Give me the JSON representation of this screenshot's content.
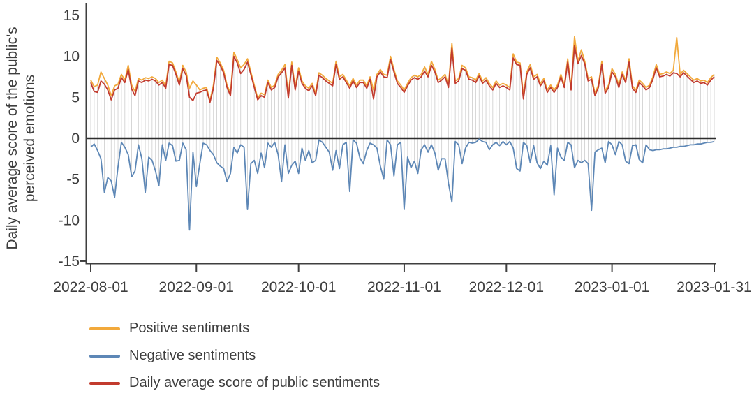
{
  "chart_data": {
    "type": "line",
    "title": "",
    "ylabel": "Daily average score of the public's perceived emotions",
    "ylabel_lines": [
      "Daily average score of the public's",
      "perceived emotions"
    ],
    "xlabel": "",
    "x_unit": "day",
    "n_points": 184,
    "x_range": [
      "2022-08-01",
      "2023-01-31"
    ],
    "x_tick_labels": [
      "2022-08-01",
      "2022-09-01",
      "2022-10-01",
      "2022-11-01",
      "2022-12-01",
      "2023-01-01",
      "2023-01-31"
    ],
    "x_tick_day_index": [
      0,
      31,
      61,
      92,
      122,
      153,
      183
    ],
    "y_ticks": [
      15,
      10,
      5,
      0,
      -5,
      -10,
      -15
    ],
    "ylim": [
      -15,
      15
    ],
    "grid": false,
    "legend_position": "bottom-left",
    "axis_color": "#3f3f3f",
    "stem_color": "#d2d2d2",
    "zero_line_color": "#2d2d2d",
    "series": [
      {
        "name": "Positive sentiments",
        "color": "#F2A93B",
        "values": [
          7.1,
          6.3,
          6.5,
          8.1,
          7.3,
          6.5,
          5.2,
          6.4,
          6.6,
          7.8,
          7.1,
          8.9,
          6.5,
          5.7,
          7.3,
          7.1,
          7.4,
          7.3,
          7.5,
          7.3,
          6.8,
          7.1,
          6.4,
          9.4,
          9.2,
          8.1,
          6.8,
          8.9,
          8.1,
          6.1,
          7.0,
          6.5,
          5.9,
          6.1,
          6.2,
          4.6,
          6.5,
          9.9,
          9.2,
          8.3,
          6.5,
          5.5,
          10.5,
          9.6,
          8.6,
          9.0,
          9.7,
          8.1,
          6.5,
          4.9,
          5.5,
          5.3,
          7.1,
          6.2,
          6.5,
          7.8,
          8.3,
          9.0,
          5.3,
          9.3,
          6.2,
          8.6,
          7.0,
          6.4,
          6.1,
          6.7,
          5.5,
          8.0,
          7.7,
          7.3,
          7.0,
          6.7,
          9.4,
          7.5,
          7.8,
          7.1,
          6.4,
          7.3,
          6.5,
          7.1,
          7.1,
          6.4,
          7.5,
          5.9,
          7.8,
          8.4,
          7.8,
          7.7,
          10.0,
          8.4,
          7.0,
          6.5,
          5.9,
          6.7,
          7.4,
          7.7,
          7.5,
          7.8,
          8.7,
          7.8,
          9.4,
          8.4,
          7.1,
          7.4,
          7.8,
          6.5,
          11.6,
          7.0,
          7.3,
          8.9,
          8.6,
          7.5,
          7.4,
          7.1,
          7.9,
          7.0,
          7.4,
          6.7,
          6.2,
          7.0,
          6.5,
          6.7,
          6.5,
          6.2,
          10.3,
          9.3,
          9.2,
          5.3,
          8.1,
          9.0,
          7.5,
          7.8,
          6.7,
          7.3,
          5.9,
          6.5,
          5.9,
          6.5,
          7.8,
          6.5,
          9.7,
          6.2,
          12.4,
          9.4,
          10.8,
          9.4,
          7.3,
          7.5,
          5.5,
          6.5,
          9.4,
          5.8,
          6.5,
          8.5,
          7.8,
          6.5,
          8.1,
          7.1,
          9.7,
          6.4,
          5.9,
          7.1,
          6.7,
          6.2,
          6.5,
          7.5,
          9.0,
          7.8,
          7.9,
          8.1,
          7.9,
          8.3,
          12.3,
          7.8,
          8.3,
          7.9,
          7.5,
          7.1,
          7.3,
          7.0,
          7.1,
          6.8,
          7.4,
          7.8
        ]
      },
      {
        "name": "Negative sentiments",
        "color": "#5D87B6",
        "values": [
          -1.1,
          -0.7,
          -1.5,
          -2.5,
          -6.6,
          -4.8,
          -5.2,
          -7.2,
          -3.5,
          -0.5,
          -1.1,
          -2.0,
          -4.7,
          -4.0,
          -0.8,
          -2.5,
          -6.6,
          -2.3,
          -2.7,
          -4.0,
          -5.8,
          -0.8,
          -2.7,
          -0.6,
          -0.9,
          -2.8,
          -2.7,
          -0.6,
          -1.4,
          -11.2,
          -1.7,
          -5.9,
          -3.1,
          -0.6,
          -0.8,
          -1.5,
          -2.0,
          -3.0,
          -3.4,
          -3.7,
          -5.3,
          -4.3,
          -1.1,
          -1.8,
          -0.8,
          -1.1,
          -8.7,
          -3.1,
          -2.7,
          -4.3,
          -1.8,
          -3.6,
          -0.6,
          -1.1,
          -0.5,
          -2.0,
          -5.3,
          -0.8,
          -4.3,
          -3.3,
          -2.8,
          -4.3,
          -1.2,
          -2.7,
          -1.5,
          -3.0,
          -2.7,
          -0.2,
          -0.5,
          -1.1,
          -1.7,
          -3.9,
          -1.5,
          -3.7,
          -0.8,
          -0.5,
          -6.5,
          -0.2,
          -0.6,
          -2.4,
          -3.1,
          -1.5,
          -0.6,
          -0.8,
          -1.2,
          -3.4,
          -5.0,
          -0.2,
          -0.8,
          -4.6,
          -0.8,
          -0.5,
          -8.7,
          -2.3,
          -3.6,
          -2.8,
          -4.3,
          -1.4,
          -0.8,
          -1.7,
          -0.8,
          -1.8,
          -3.9,
          -2.5,
          -2.5,
          -5.5,
          -7.8,
          -0.4,
          -0.8,
          -3.1,
          -1.2,
          -0.5,
          -0.6,
          -0.5,
          -0.1,
          -0.4,
          -0.5,
          -1.4,
          -0.8,
          -0.5,
          -0.9,
          -0.4,
          -0.8,
          -0.4,
          -1.2,
          -3.7,
          -4.0,
          -0.5,
          -0.9,
          -3.0,
          -0.9,
          -3.0,
          -3.7,
          -2.8,
          -3.3,
          -0.9,
          -6.9,
          -1.2,
          -2.3,
          -2.7,
          -0.5,
          -0.8,
          -3.6,
          -2.7,
          -3.0,
          -2.7,
          -3.1,
          -8.8,
          -1.7,
          -1.4,
          -1.2,
          -3.0,
          -0.4,
          -0.8,
          -2.0,
          -0.4,
          -0.8,
          -2.8,
          -3.1,
          -0.9,
          -0.8,
          -2.6,
          -3.0,
          -0.8,
          -1.4,
          -1.5,
          -1.4,
          -1.4,
          -1.3,
          -1.3,
          -1.2,
          -1.1,
          -1.1,
          -1.0,
          -1.0,
          -0.9,
          -0.8,
          -0.8,
          -0.7,
          -0.7,
          -0.6,
          -0.5,
          -0.5,
          -0.4
        ]
      },
      {
        "name": "Daily average score of public sentiments",
        "color": "#C23B2E",
        "values": [
          6.8,
          5.7,
          5.6,
          7.0,
          6.6,
          5.9,
          4.7,
          5.9,
          6.1,
          7.4,
          6.8,
          8.4,
          6.0,
          5.2,
          7.0,
          6.8,
          7.1,
          7.0,
          7.2,
          7.0,
          6.5,
          6.8,
          6.1,
          9.0,
          8.9,
          7.8,
          6.5,
          8.5,
          7.7,
          5.0,
          4.6,
          5.5,
          5.6,
          5.8,
          5.9,
          4.4,
          6.1,
          9.5,
          8.9,
          8.0,
          6.2,
          5.2,
          10.0,
          9.2,
          7.9,
          8.4,
          9.3,
          7.8,
          6.2,
          4.7,
          5.2,
          5.0,
          6.8,
          5.9,
          6.2,
          7.5,
          8.0,
          8.6,
          4.9,
          8.9,
          5.9,
          8.2,
          6.7,
          6.1,
          5.8,
          6.4,
          5.2,
          7.7,
          7.4,
          7.0,
          6.7,
          6.4,
          9.0,
          7.2,
          7.5,
          6.8,
          6.1,
          7.0,
          6.2,
          6.8,
          6.8,
          6.1,
          7.2,
          4.8,
          7.5,
          8.1,
          7.5,
          7.4,
          9.6,
          8.1,
          6.7,
          6.2,
          5.6,
          6.4,
          7.1,
          7.4,
          7.2,
          7.5,
          8.2,
          7.5,
          8.9,
          8.1,
          6.8,
          7.1,
          7.5,
          6.2,
          11.0,
          6.7,
          7.0,
          8.5,
          8.3,
          7.2,
          7.1,
          6.8,
          7.6,
          6.7,
          7.1,
          6.4,
          5.9,
          6.7,
          6.2,
          6.4,
          6.2,
          5.9,
          9.8,
          9.0,
          8.9,
          4.8,
          7.8,
          8.6,
          7.2,
          7.5,
          6.4,
          7.0,
          5.6,
          6.2,
          5.6,
          6.2,
          7.5,
          6.2,
          9.3,
          5.9,
          11.3,
          9.1,
          10.1,
          9.1,
          7.0,
          7.2,
          5.2,
          6.2,
          9.0,
          5.5,
          6.2,
          8.1,
          7.5,
          6.2,
          7.8,
          6.8,
          9.3,
          6.1,
          5.6,
          6.8,
          6.4,
          5.9,
          6.2,
          7.2,
          8.6,
          7.5,
          7.6,
          7.8,
          7.6,
          8.0,
          7.9,
          7.5,
          8.0,
          7.6,
          7.2,
          6.8,
          7.0,
          6.7,
          6.8,
          6.5,
          7.1,
          7.5
        ]
      }
    ]
  }
}
